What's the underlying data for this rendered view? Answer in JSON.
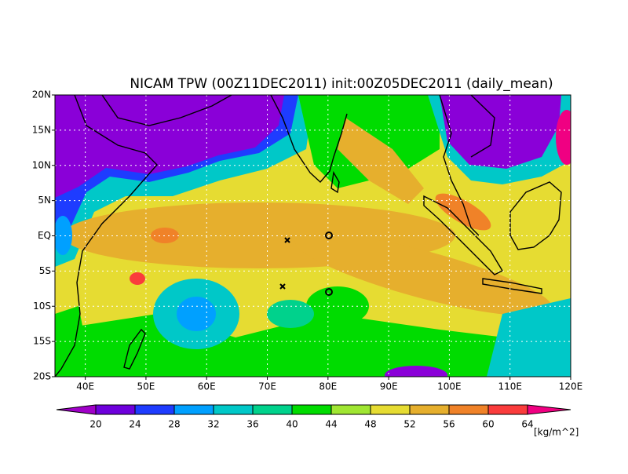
{
  "title": "NICAM TPW (00Z11DEC2011) init:00Z05DEC2011 (daily_mean)",
  "map": {
    "lon_range": [
      35,
      120
    ],
    "lat_range": [
      -20,
      20
    ],
    "lon_ticks": [
      {
        "value": 40,
        "label": "40E"
      },
      {
        "value": 50,
        "label": "50E"
      },
      {
        "value": 60,
        "label": "60E"
      },
      {
        "value": 70,
        "label": "70E"
      },
      {
        "value": 80,
        "label": "80E"
      },
      {
        "value": 90,
        "label": "90E"
      },
      {
        "value": 100,
        "label": "100E"
      },
      {
        "value": 110,
        "label": "110E"
      },
      {
        "value": 120,
        "label": "120E"
      }
    ],
    "lat_ticks": [
      {
        "value": 20,
        "label": "20N"
      },
      {
        "value": 15,
        "label": "15N"
      },
      {
        "value": 10,
        "label": "10N"
      },
      {
        "value": 5,
        "label": "5N"
      },
      {
        "value": 0,
        "label": "EQ"
      },
      {
        "value": -5,
        "label": "5S"
      },
      {
        "value": -10,
        "label": "10S"
      },
      {
        "value": -15,
        "label": "15S"
      },
      {
        "value": -20,
        "label": "20S"
      }
    ],
    "grid": true
  },
  "colorbar": {
    "levels": [
      20,
      24,
      28,
      32,
      36,
      40,
      44,
      48,
      52,
      56,
      60,
      64
    ],
    "colors": [
      "#a000c8",
      "#6e00dc",
      "#1e3cff",
      "#00a0ff",
      "#00c8c8",
      "#00d28c",
      "#00dc00",
      "#a0e632",
      "#e6dc32",
      "#e6af2d",
      "#f08228",
      "#fa3c3c",
      "#f00082"
    ],
    "unit": "[kg/m^2]"
  }
}
